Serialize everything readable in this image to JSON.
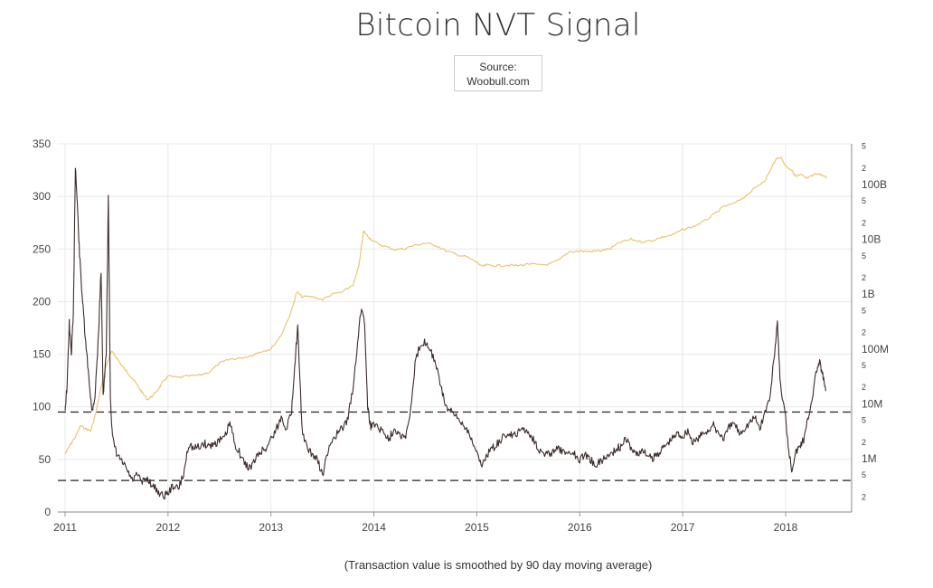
{
  "title": "Bitcoin NVT Signal",
  "source": {
    "line1": "Source:",
    "line2": "Woobull.com"
  },
  "footnote": "(Transaction value is smoothed by 90 day moving average)",
  "colors": {
    "nvt": "#3d2b2b",
    "price": "#e6c36a",
    "grid": "#e8e8e8",
    "dashed": "#222222"
  },
  "chart_data": {
    "type": "line",
    "title": "Bitcoin NVT Signal",
    "xlabel": "",
    "ylabel": "",
    "grid": true,
    "x_range": [
      2011.0,
      2018.42
    ],
    "x_ticks": [
      "2011",
      "2012",
      "2013",
      "2014",
      "2015",
      "2016",
      "2017",
      "2018"
    ],
    "left_axis": {
      "range": [
        0,
        350
      ],
      "ticks": [
        "0",
        "50",
        "100",
        "150",
        "200",
        "250",
        "300",
        "350"
      ]
    },
    "right_axis": {
      "scale": "log",
      "range": [
        600000,
        2000000000000
      ],
      "major_ticks": [
        {
          "value": 1000000,
          "label": "1M"
        },
        {
          "value": 10000000,
          "label": "10M"
        },
        {
          "value": 100000000,
          "label": "100M"
        },
        {
          "value": 1000000000,
          "label": "1B"
        },
        {
          "value": 10000000000,
          "label": "10B"
        },
        {
          "value": 100000000000,
          "label": "100B"
        }
      ],
      "minor_ticks": [
        {
          "value": 2000000,
          "label": "2"
        },
        {
          "value": 5000000,
          "label": "5"
        },
        {
          "value": 20000000,
          "label": "2"
        },
        {
          "value": 50000000,
          "label": "5"
        },
        {
          "value": 200000000,
          "label": "2"
        },
        {
          "value": 500000000,
          "label": "5"
        },
        {
          "value": 2000000000,
          "label": "2"
        },
        {
          "value": 5000000000,
          "label": "5"
        },
        {
          "value": 20000000000,
          "label": "2"
        },
        {
          "value": 50000000000,
          "label": "5"
        },
        {
          "value": 200000000000,
          "label": "2"
        },
        {
          "value": 500000000000,
          "label": "5"
        },
        {
          "value": 200000,
          "label": "2"
        },
        {
          "value": 500000,
          "label": "5"
        }
      ]
    },
    "reference_lines": [
      95,
      30
    ],
    "series": [
      {
        "axis": "left",
        "points": [
          [
            2011.0,
            98
          ],
          [
            2011.02,
            120
          ],
          [
            2011.04,
            180
          ],
          [
            2011.06,
            150
          ],
          [
            2011.08,
            185
          ],
          [
            2011.1,
            330
          ],
          [
            2011.12,
            290
          ],
          [
            2011.14,
            245
          ],
          [
            2011.17,
            200
          ],
          [
            2011.2,
            160
          ],
          [
            2011.23,
            130
          ],
          [
            2011.26,
            95
          ],
          [
            2011.29,
            110
          ],
          [
            2011.32,
            160
          ],
          [
            2011.35,
            230
          ],
          [
            2011.37,
            110
          ],
          [
            2011.4,
            150
          ],
          [
            2011.42,
            300
          ],
          [
            2011.44,
            110
          ],
          [
            2011.46,
            70
          ],
          [
            2011.5,
            55
          ],
          [
            2011.55,
            48
          ],
          [
            2011.6,
            40
          ],
          [
            2011.65,
            30
          ],
          [
            2011.7,
            35
          ],
          [
            2011.75,
            28
          ],
          [
            2011.8,
            32
          ],
          [
            2011.85,
            25
          ],
          [
            2011.9,
            20
          ],
          [
            2011.95,
            15
          ],
          [
            2012.0,
            18
          ],
          [
            2012.05,
            25
          ],
          [
            2012.1,
            22
          ],
          [
            2012.15,
            35
          ],
          [
            2012.2,
            65
          ],
          [
            2012.25,
            60
          ],
          [
            2012.3,
            62
          ],
          [
            2012.35,
            65
          ],
          [
            2012.4,
            63
          ],
          [
            2012.45,
            65
          ],
          [
            2012.5,
            68
          ],
          [
            2012.55,
            70
          ],
          [
            2012.6,
            85
          ],
          [
            2012.65,
            65
          ],
          [
            2012.7,
            55
          ],
          [
            2012.75,
            45
          ],
          [
            2012.8,
            42
          ],
          [
            2012.85,
            50
          ],
          [
            2012.9,
            58
          ],
          [
            2012.95,
            60
          ],
          [
            2013.0,
            70
          ],
          [
            2013.05,
            78
          ],
          [
            2013.1,
            90
          ],
          [
            2013.15,
            80
          ],
          [
            2013.2,
            95
          ],
          [
            2013.23,
            140
          ],
          [
            2013.26,
            175
          ],
          [
            2013.3,
            80
          ],
          [
            2013.35,
            60
          ],
          [
            2013.4,
            55
          ],
          [
            2013.45,
            50
          ],
          [
            2013.5,
            35
          ],
          [
            2013.55,
            55
          ],
          [
            2013.6,
            70
          ],
          [
            2013.65,
            75
          ],
          [
            2013.7,
            80
          ],
          [
            2013.75,
            90
          ],
          [
            2013.8,
            120
          ],
          [
            2013.85,
            170
          ],
          [
            2013.88,
            195
          ],
          [
            2013.91,
            180
          ],
          [
            2013.94,
            100
          ],
          [
            2013.97,
            80
          ],
          [
            2014.0,
            85
          ],
          [
            2014.05,
            80
          ],
          [
            2014.1,
            75
          ],
          [
            2014.15,
            70
          ],
          [
            2014.2,
            80
          ],
          [
            2014.25,
            75
          ],
          [
            2014.3,
            70
          ],
          [
            2014.35,
            90
          ],
          [
            2014.4,
            140
          ],
          [
            2014.45,
            160
          ],
          [
            2014.5,
            162
          ],
          [
            2014.55,
            155
          ],
          [
            2014.6,
            140
          ],
          [
            2014.65,
            120
          ],
          [
            2014.7,
            100
          ],
          [
            2014.75,
            95
          ],
          [
            2014.8,
            90
          ],
          [
            2014.85,
            85
          ],
          [
            2014.9,
            80
          ],
          [
            2014.95,
            70
          ],
          [
            2015.0,
            55
          ],
          [
            2015.05,
            45
          ],
          [
            2015.1,
            55
          ],
          [
            2015.15,
            60
          ],
          [
            2015.2,
            65
          ],
          [
            2015.25,
            70
          ],
          [
            2015.3,
            75
          ],
          [
            2015.35,
            72
          ],
          [
            2015.4,
            75
          ],
          [
            2015.45,
            80
          ],
          [
            2015.5,
            75
          ],
          [
            2015.55,
            70
          ],
          [
            2015.6,
            60
          ],
          [
            2015.65,
            55
          ],
          [
            2015.7,
            55
          ],
          [
            2015.75,
            58
          ],
          [
            2015.8,
            60
          ],
          [
            2015.85,
            55
          ],
          [
            2015.9,
            58
          ],
          [
            2015.95,
            55
          ],
          [
            2016.0,
            50
          ],
          [
            2016.05,
            55
          ],
          [
            2016.1,
            50
          ],
          [
            2016.15,
            45
          ],
          [
            2016.2,
            48
          ],
          [
            2016.25,
            52
          ],
          [
            2016.3,
            55
          ],
          [
            2016.35,
            60
          ],
          [
            2016.4,
            62
          ],
          [
            2016.45,
            70
          ],
          [
            2016.5,
            60
          ],
          [
            2016.55,
            55
          ],
          [
            2016.6,
            58
          ],
          [
            2016.65,
            55
          ],
          [
            2016.7,
            50
          ],
          [
            2016.75,
            55
          ],
          [
            2016.8,
            60
          ],
          [
            2016.85,
            65
          ],
          [
            2016.9,
            70
          ],
          [
            2016.95,
            75
          ],
          [
            2017.0,
            72
          ],
          [
            2017.05,
            78
          ],
          [
            2017.1,
            65
          ],
          [
            2017.15,
            70
          ],
          [
            2017.2,
            75
          ],
          [
            2017.25,
            78
          ],
          [
            2017.3,
            82
          ],
          [
            2017.35,
            75
          ],
          [
            2017.4,
            70
          ],
          [
            2017.45,
            80
          ],
          [
            2017.5,
            85
          ],
          [
            2017.55,
            75
          ],
          [
            2017.6,
            80
          ],
          [
            2017.65,
            85
          ],
          [
            2017.7,
            90
          ],
          [
            2017.75,
            80
          ],
          [
            2017.8,
            95
          ],
          [
            2017.85,
            110
          ],
          [
            2017.9,
            160
          ],
          [
            2017.92,
            178
          ],
          [
            2017.95,
            120
          ],
          [
            2018.0,
            90
          ],
          [
            2018.03,
            60
          ],
          [
            2018.06,
            40
          ],
          [
            2018.09,
            55
          ],
          [
            2018.12,
            60
          ],
          [
            2018.15,
            65
          ],
          [
            2018.18,
            70
          ],
          [
            2018.22,
            90
          ],
          [
            2018.26,
            110
          ],
          [
            2018.3,
            135
          ],
          [
            2018.33,
            142
          ],
          [
            2018.36,
            130
          ],
          [
            2018.39,
            115
          ]
        ]
      },
      {
        "axis": "right",
        "points": [
          [
            2011.0,
            1200000
          ],
          [
            2011.05,
            1800000
          ],
          [
            2011.1,
            2500000
          ],
          [
            2011.15,
            4000000
          ],
          [
            2011.2,
            3500000
          ],
          [
            2011.25,
            3200000
          ],
          [
            2011.3,
            7000000
          ],
          [
            2011.35,
            20000000
          ],
          [
            2011.4,
            50000000
          ],
          [
            2011.45,
            90000000
          ],
          [
            2011.5,
            70000000
          ],
          [
            2011.55,
            50000000
          ],
          [
            2011.6,
            38000000
          ],
          [
            2011.65,
            30000000
          ],
          [
            2011.7,
            22000000
          ],
          [
            2011.75,
            16000000
          ],
          [
            2011.8,
            12000000
          ],
          [
            2011.85,
            14000000
          ],
          [
            2011.9,
            18000000
          ],
          [
            2011.95,
            25000000
          ],
          [
            2012.0,
            32000000
          ],
          [
            2012.1,
            30000000
          ],
          [
            2012.2,
            32000000
          ],
          [
            2012.3,
            33000000
          ],
          [
            2012.4,
            38000000
          ],
          [
            2012.5,
            55000000
          ],
          [
            2012.6,
            65000000
          ],
          [
            2012.7,
            68000000
          ],
          [
            2012.8,
            75000000
          ],
          [
            2012.9,
            90000000
          ],
          [
            2013.0,
            100000000
          ],
          [
            2013.1,
            180000000
          ],
          [
            2013.2,
            500000000
          ],
          [
            2013.25,
            1100000000
          ],
          [
            2013.3,
            900000000
          ],
          [
            2013.4,
            900000000
          ],
          [
            2013.5,
            800000000
          ],
          [
            2013.6,
            1000000000
          ],
          [
            2013.7,
            1100000000
          ],
          [
            2013.8,
            1500000000
          ],
          [
            2013.85,
            3000000000
          ],
          [
            2013.9,
            14000000000
          ],
          [
            2013.95,
            11000000000
          ],
          [
            2014.0,
            9000000000
          ],
          [
            2014.1,
            7500000000
          ],
          [
            2014.2,
            6500000000
          ],
          [
            2014.3,
            6800000000
          ],
          [
            2014.4,
            7800000000
          ],
          [
            2014.5,
            8500000000
          ],
          [
            2014.6,
            7800000000
          ],
          [
            2014.7,
            6200000000
          ],
          [
            2014.8,
            5300000000
          ],
          [
            2014.9,
            4800000000
          ],
          [
            2015.0,
            3800000000
          ],
          [
            2015.05,
            3200000000
          ],
          [
            2015.1,
            3400000000
          ],
          [
            2015.2,
            3300000000
          ],
          [
            2015.3,
            3400000000
          ],
          [
            2015.4,
            3300000000
          ],
          [
            2015.5,
            3600000000
          ],
          [
            2015.6,
            3400000000
          ],
          [
            2015.7,
            3500000000
          ],
          [
            2015.8,
            4200000000
          ],
          [
            2015.9,
            6000000000
          ],
          [
            2016.0,
            6100000000
          ],
          [
            2016.1,
            6000000000
          ],
          [
            2016.2,
            6200000000
          ],
          [
            2016.3,
            6800000000
          ],
          [
            2016.4,
            9000000000
          ],
          [
            2016.5,
            10000000000
          ],
          [
            2016.6,
            9000000000
          ],
          [
            2016.7,
            9500000000
          ],
          [
            2016.8,
            11000000000
          ],
          [
            2016.9,
            12000000000
          ],
          [
            2017.0,
            15000000000
          ],
          [
            2017.1,
            17000000000
          ],
          [
            2017.2,
            21000000000
          ],
          [
            2017.3,
            28000000000
          ],
          [
            2017.4,
            40000000000
          ],
          [
            2017.5,
            45000000000
          ],
          [
            2017.6,
            60000000000
          ],
          [
            2017.7,
            85000000000
          ],
          [
            2017.8,
            120000000000
          ],
          [
            2017.85,
            180000000000
          ],
          [
            2017.9,
            280000000000
          ],
          [
            2017.95,
            320000000000
          ],
          [
            2018.0,
            220000000000
          ],
          [
            2018.05,
            190000000000
          ],
          [
            2018.1,
            140000000000
          ],
          [
            2018.15,
            150000000000
          ],
          [
            2018.2,
            130000000000
          ],
          [
            2018.25,
            140000000000
          ],
          [
            2018.3,
            160000000000
          ],
          [
            2018.35,
            150000000000
          ],
          [
            2018.4,
            130000000000
          ]
        ]
      }
    ]
  }
}
